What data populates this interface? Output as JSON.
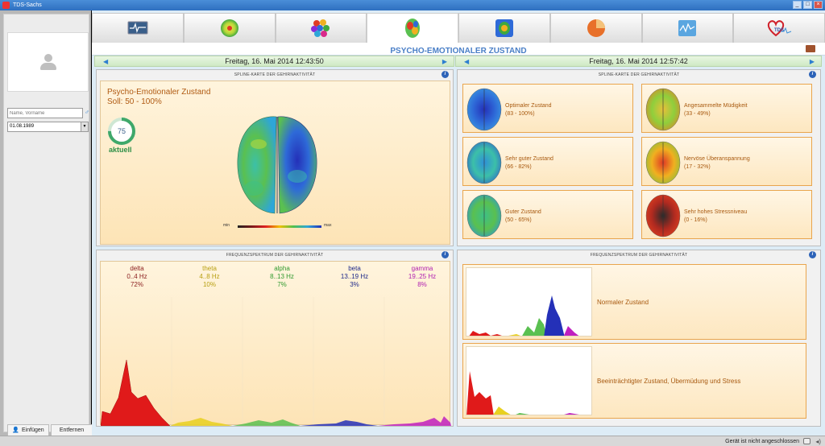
{
  "window": {
    "title": "TDS-Sachs"
  },
  "patient": {
    "name_placeholder": "Name, Vorname",
    "birthdate": "01.08.1989"
  },
  "left_buttons": {
    "add": "Einfügen",
    "remove": "Entfernen"
  },
  "tabs": [
    {
      "icon": "monitor-wave-icon"
    },
    {
      "icon": "radar-circle-icon"
    },
    {
      "icon": "color-cluster-icon"
    },
    {
      "icon": "brain-map-icon",
      "active": true
    },
    {
      "icon": "brain-target-icon"
    },
    {
      "icon": "pie-chart-icon"
    },
    {
      "icon": "wave-chart-icon"
    },
    {
      "icon": "tds-heart-logo-icon",
      "logo_text": "TDS"
    }
  ],
  "page": {
    "title": "PSYCHO-EMOTIONALER ZUSTAND"
  },
  "left_session": {
    "date": "Freitag, 16. Mai 2014 12:43:50"
  },
  "right_session": {
    "date": "Freitag, 16. Mai 2014 12:57:42"
  },
  "spline_panel": {
    "title": "SPLINE-KARTE DER GEHIRNAKTIVITÄT",
    "state_title": "Psycho-Emotionaler Zustand",
    "target": "Soll: 50 - 100%",
    "value": "75",
    "value_fraction": 0.75,
    "value_label": "aktuell",
    "legend_min": "min",
    "legend_max": "max"
  },
  "states": [
    {
      "name": "Optimaler Zustand",
      "range": "(83 - 100%)",
      "palette": [
        "#2430b8",
        "#2e6ad8",
        "#3c9ae0"
      ]
    },
    {
      "name": "Angesammelte Müdigkeit",
      "range": "(33 - 49%)",
      "palette": [
        "#e8c03a",
        "#8fcf3c",
        "#d88a2a"
      ]
    },
    {
      "name": "Sehr guter Zustand",
      "range": "(66 - 82%)",
      "palette": [
        "#2e8fd8",
        "#3cc0a8",
        "#3068c8"
      ]
    },
    {
      "name": "Nervöse Überanspannung",
      "range": "(17 - 32%)",
      "palette": [
        "#e03a24",
        "#f0b020",
        "#8ac03c"
      ]
    },
    {
      "name": "Guter Zustand",
      "range": "(50 - 65%)",
      "palette": [
        "#3cc088",
        "#5ac050",
        "#2e9ad0"
      ]
    },
    {
      "name": "Sehr hohes Stressniveau",
      "range": "(0 - 16%)",
      "palette": [
        "#2a2a2a",
        "#b02a20",
        "#e04020"
      ]
    }
  ],
  "freq_panel": {
    "title": "FREQUENZSPEKTRUM DER GEHIRNAKTIVITÄT",
    "bands": [
      {
        "name": "delta",
        "range": "0..4 Hz",
        "percent": "72%",
        "color": "#8a1e1e"
      },
      {
        "name": "theta",
        "range": "4..8 Hz",
        "percent": "10%",
        "color": "#b8a012"
      },
      {
        "name": "alpha",
        "range": "8..13 Hz",
        "percent": "7%",
        "color": "#2f9a2f"
      },
      {
        "name": "beta",
        "range": "13..19 Hz",
        "percent": "3%",
        "color": "#1e2a8a"
      },
      {
        "name": "gamma",
        "range": "19..25 Hz",
        "percent": "8%",
        "color": "#b020b0"
      }
    ]
  },
  "freq_refs": [
    {
      "name": "Normaler Zustand"
    },
    {
      "name": "Beeinträchtigter Zustand, Übermüdung und Stress"
    }
  ],
  "status": {
    "text": "Gerät ist nicht angeschlossen"
  }
}
